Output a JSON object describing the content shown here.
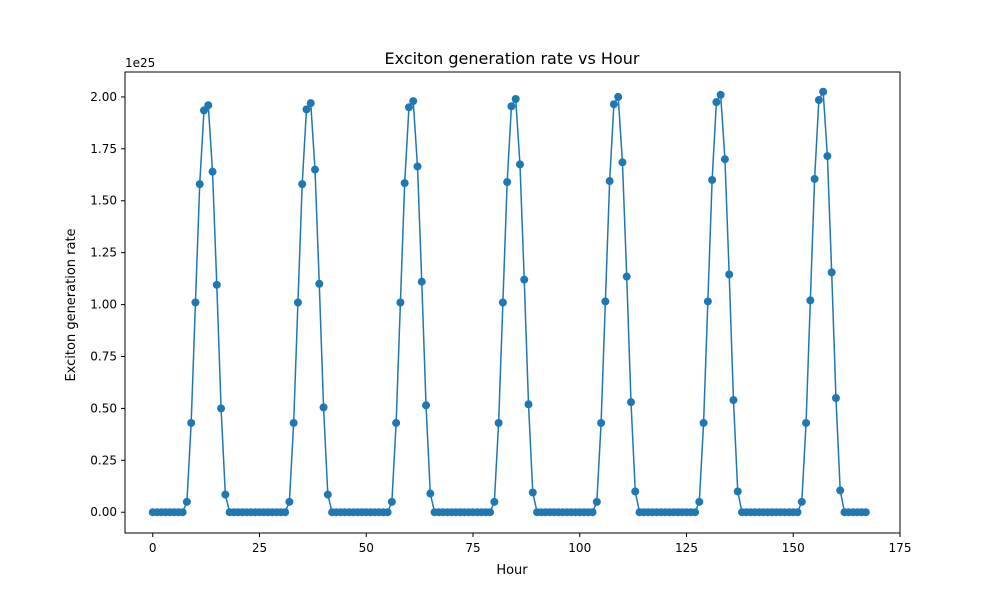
{
  "chart_data": {
    "type": "line",
    "title": "Exciton generation rate vs Hour",
    "xlabel": "Hour",
    "ylabel": "Exciton generation rate",
    "y_offset_label": "1e25",
    "xlim": [
      -6.5,
      175
    ],
    "ylim": [
      -0.1,
      2.12
    ],
    "x_ticks": [
      0,
      25,
      50,
      75,
      100,
      125,
      150,
      175
    ],
    "x_tick_labels": [
      "0",
      "25",
      "50",
      "75",
      "100",
      "125",
      "150",
      "175"
    ],
    "y_ticks": [
      0.0,
      0.25,
      0.5,
      0.75,
      1.0,
      1.25,
      1.5,
      1.75,
      2.0
    ],
    "y_tick_labels": [
      "0.00",
      "0.25",
      "0.50",
      "0.75",
      "1.00",
      "1.25",
      "1.50",
      "1.75",
      "2.00"
    ],
    "y_unit_multiplier": "1e25",
    "grid": false,
    "series": [
      {
        "color": "#1f77b4",
        "marker": "circle",
        "x": [
          0,
          1,
          2,
          3,
          4,
          5,
          6,
          7,
          8,
          9,
          10,
          11,
          12,
          13,
          14,
          15,
          16,
          17,
          18,
          19,
          20,
          21,
          22,
          23,
          24,
          25,
          26,
          27,
          28,
          29,
          30,
          31,
          32,
          33,
          34,
          35,
          36,
          37,
          38,
          39,
          40,
          41,
          42,
          43,
          44,
          45,
          46,
          47,
          48,
          49,
          50,
          51,
          52,
          53,
          54,
          55,
          56,
          57,
          58,
          59,
          60,
          61,
          62,
          63,
          64,
          65,
          66,
          67,
          68,
          69,
          70,
          71,
          72,
          73,
          74,
          75,
          76,
          77,
          78,
          79,
          80,
          81,
          82,
          83,
          84,
          85,
          86,
          87,
          88,
          89,
          90,
          91,
          92,
          93,
          94,
          95,
          96,
          97,
          98,
          99,
          100,
          101,
          102,
          103,
          104,
          105,
          106,
          107,
          108,
          109,
          110,
          111,
          112,
          113,
          114,
          115,
          116,
          117,
          118,
          119,
          120,
          121,
          122,
          123,
          124,
          125,
          126,
          127,
          128,
          129,
          130,
          131,
          132,
          133,
          134,
          135,
          136,
          137,
          138,
          139,
          140,
          141,
          142,
          143,
          144,
          145,
          146,
          147,
          148,
          149,
          150,
          151,
          152,
          153,
          154,
          155,
          156,
          157,
          158,
          159,
          160,
          161,
          162,
          163,
          164,
          165,
          166,
          167
        ],
        "y": [
          0,
          0,
          0,
          0,
          0,
          0,
          0,
          0,
          0.05,
          0.43,
          1.01,
          1.58,
          1.935,
          1.96,
          1.64,
          1.095,
          0.5,
          0.085,
          0,
          0,
          0,
          0,
          0,
          0,
          0,
          0,
          0,
          0,
          0,
          0,
          0,
          0,
          0.05,
          0.43,
          1.01,
          1.58,
          1.94,
          1.97,
          1.65,
          1.1,
          0.505,
          0.085,
          0,
          0,
          0,
          0,
          0,
          0,
          0,
          0,
          0,
          0,
          0,
          0,
          0,
          0,
          0.05,
          0.43,
          1.01,
          1.585,
          1.95,
          1.98,
          1.665,
          1.11,
          0.515,
          0.09,
          0,
          0,
          0,
          0,
          0,
          0,
          0,
          0,
          0,
          0,
          0,
          0,
          0,
          0,
          0.05,
          0.43,
          1.01,
          1.59,
          1.955,
          1.99,
          1.675,
          1.12,
          0.52,
          0.095,
          0,
          0,
          0,
          0,
          0,
          0,
          0,
          0,
          0,
          0,
          0,
          0,
          0,
          0,
          0.05,
          0.43,
          1.015,
          1.595,
          1.965,
          2.0,
          1.685,
          1.135,
          0.53,
          0.1,
          0,
          0,
          0,
          0,
          0,
          0,
          0,
          0,
          0,
          0,
          0,
          0,
          0,
          0,
          0.05,
          0.43,
          1.015,
          1.6,
          1.975,
          2.01,
          1.7,
          1.145,
          0.54,
          0.1,
          0,
          0,
          0,
          0,
          0,
          0,
          0,
          0,
          0,
          0,
          0,
          0,
          0,
          0,
          0.05,
          0.43,
          1.02,
          1.605,
          1.985,
          2.025,
          1.715,
          1.155,
          0.55,
          0.105,
          0,
          0,
          0,
          0,
          0,
          0
        ]
      }
    ]
  }
}
